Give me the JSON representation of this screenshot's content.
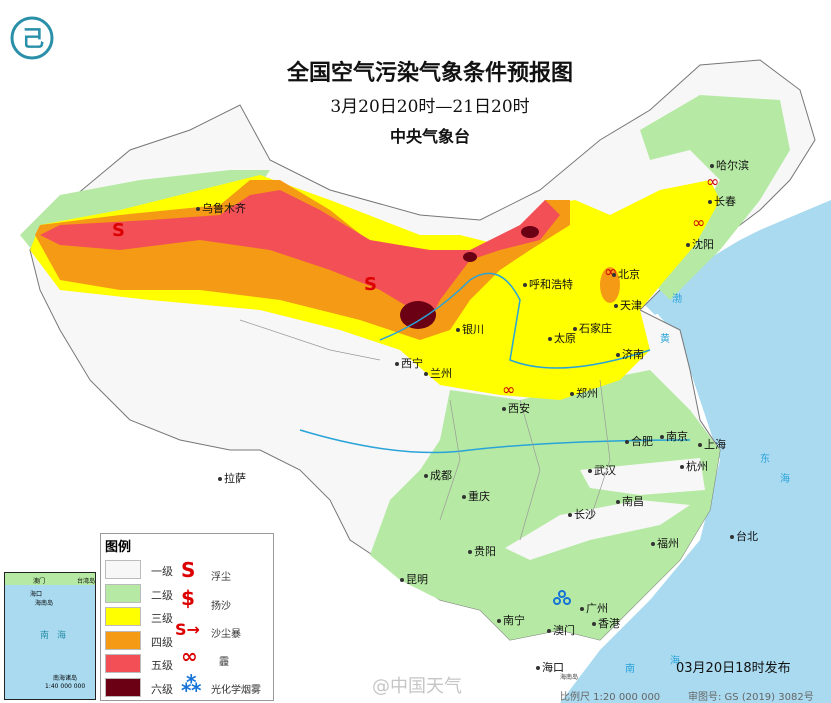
{
  "header": {
    "title": "全国空气污染气象条件预报图",
    "subtitle": "3月20日20时—21日20时",
    "organization": "中央气象台"
  },
  "cities": [
    "乌鲁木齐",
    "哈尔滨",
    "长春",
    "沈阳",
    "呼和浩特",
    "北京",
    "天津",
    "银川",
    "太原",
    "石家庄",
    "济南",
    "西宁",
    "兰州",
    "西安",
    "郑州",
    "合肥",
    "南京",
    "上海",
    "杭州",
    "武汉",
    "成都",
    "重庆",
    "拉萨",
    "南昌",
    "长沙",
    "台北",
    "福州",
    "贵阳",
    "昆明",
    "广州",
    "南宁",
    "澳门",
    "香港",
    "海口"
  ],
  "seas": [
    "黄",
    "渤",
    "东",
    "海",
    "南",
    "海"
  ],
  "legend": {
    "title": "图例",
    "levels": [
      {
        "label": "一级",
        "color": "#f7f7f7"
      },
      {
        "label": "二级",
        "color": "#b6eaa4"
      },
      {
        "label": "三级",
        "color": "#ffff00"
      },
      {
        "label": "四级",
        "color": "#f59a14"
      },
      {
        "label": "五级",
        "color": "#f24f57"
      },
      {
        "label": "六级",
        "color": "#6b0015"
      }
    ],
    "symbols": [
      {
        "icon": "floating-dust-icon",
        "glyph": "S",
        "label": "浮尘"
      },
      {
        "icon": "blowing-sand-icon",
        "glyph": "$",
        "label": "扬沙"
      },
      {
        "icon": "sandstorm-icon",
        "glyph": "S→",
        "label": "沙尘暴"
      },
      {
        "icon": "haze-icon",
        "glyph": "∞",
        "label": "霾"
      },
      {
        "icon": "photochemical-smog-icon",
        "glyph": "⁂",
        "label": "光化学烟雾"
      }
    ]
  },
  "inset": {
    "sea": "南海",
    "islands": "南海诸岛",
    "hainan": "海南岛",
    "haikou": "海口",
    "macao": "澳门",
    "hongkong": "香港",
    "taiwan": "台湾岛",
    "scale": "1:40 000 000"
  },
  "footer": {
    "issued": "03月20日18时发布",
    "scale": "比例尺 1:20 000 000",
    "map_no": "审图号: GS (2019) 3082号",
    "watermark": "@中国天气",
    "hainan_label": "海南岛"
  }
}
